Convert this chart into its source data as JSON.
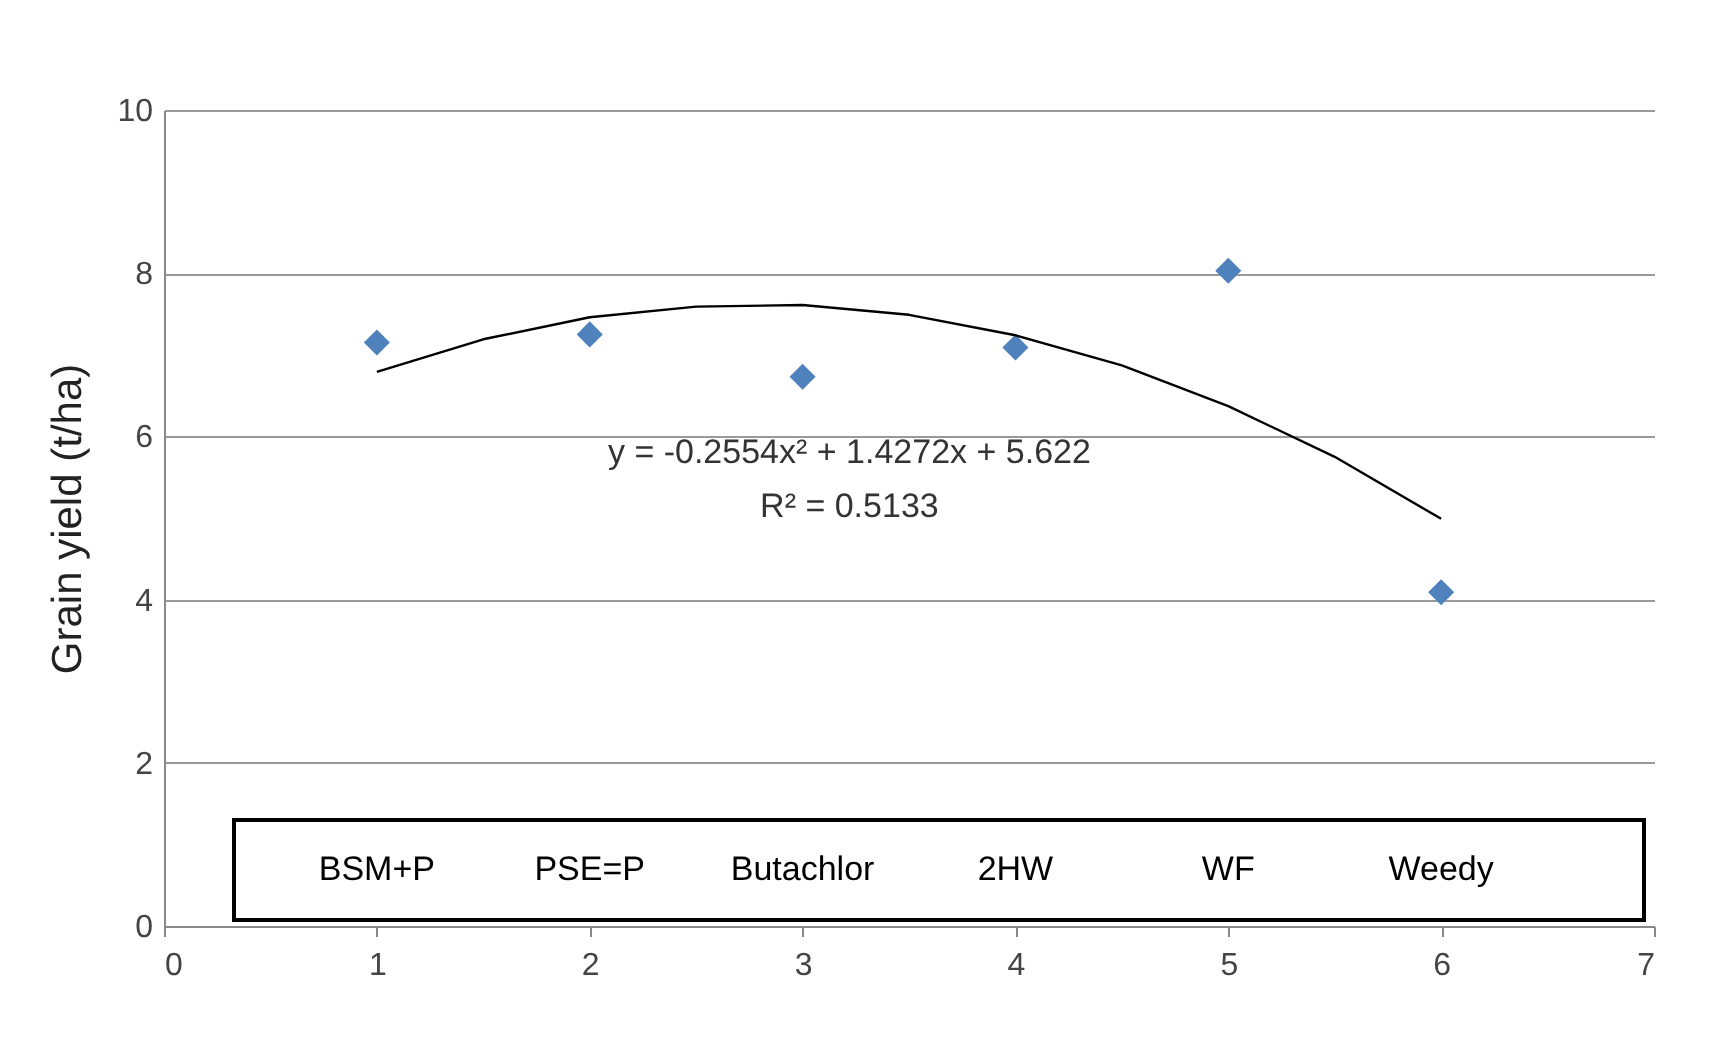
{
  "chart_data": {
    "type": "scatter",
    "ylabel": "Grain yield (t/ha)",
    "x": [
      1,
      2,
      3,
      4,
      5,
      6
    ],
    "series": [
      {
        "color": "#4f81bd",
        "marker": "diamond",
        "values": [
          7.15,
          7.25,
          6.73,
          7.09,
          8.03,
          4.09
        ]
      },
      {
        "type": "line",
        "color": "#000000",
        "x": [
          1,
          1.5,
          2,
          2.5,
          3,
          3.5,
          4,
          4.5,
          5,
          5.5,
          6
        ],
        "values": [
          6.79,
          7.19,
          7.46,
          7.59,
          7.61,
          7.49,
          7.24,
          6.87,
          6.37,
          5.75,
          4.99
        ]
      }
    ],
    "annotations": [
      "y = -0.2554x² + 1.4272x + 5.622",
      "R² = 0.5133",
      "BSM+P",
      "PSE=P",
      "Butachlor",
      "2HW",
      "WF",
      "Weedy"
    ],
    "xlim": [
      0,
      7
    ],
    "xticks": [
      0,
      1,
      2,
      3,
      4,
      5,
      6,
      7
    ],
    "ylim": [
      0,
      10
    ],
    "yticks": [
      0,
      2,
      4,
      6,
      8,
      10
    ],
    "grid": "y"
  }
}
